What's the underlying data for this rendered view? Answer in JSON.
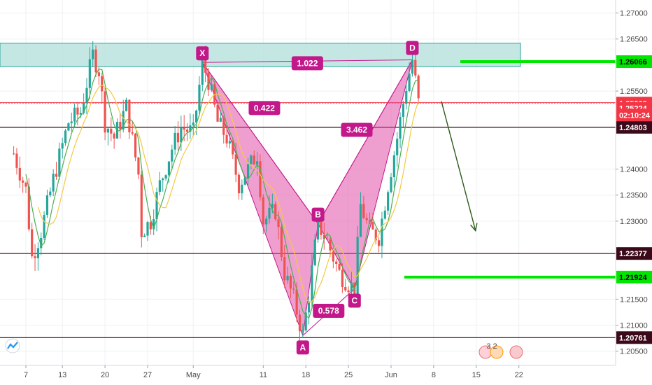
{
  "chart_data": {
    "type": "candlestick",
    "y_axis": {
      "min": 1.2005,
      "max": 1.2735,
      "ticks": [
        "1.27000",
        "1.26500",
        "1.25500",
        "1.24000",
        "1.23500",
        "1.23000",
        "1.21500",
        "1.21000",
        "1.20500"
      ],
      "tick_values": [
        1.27,
        1.265,
        1.255,
        1.24,
        1.235,
        1.23,
        1.215,
        1.21,
        1.205
      ]
    },
    "x_axis": {
      "ticks": [
        "7",
        "13",
        "20",
        "27",
        "May",
        "11",
        "18",
        "25",
        "Jun",
        "8",
        "15",
        "22"
      ],
      "tick_bars": [
        0,
        12,
        26,
        40,
        55,
        78,
        92,
        106,
        120,
        134,
        148,
        162
      ]
    },
    "resistance_zone": {
      "from": 1.2597,
      "to": 1.2642
    },
    "price_lines": [
      {
        "value": 1.26066,
        "label": "1.26066",
        "color": "#00e600",
        "kind": "target"
      },
      {
        "value": 1.25268,
        "label": "1.25268",
        "color": "#f23645",
        "kind": "current"
      },
      {
        "value": 1.25224,
        "label": "1.25224",
        "color": "#f23645",
        "kind": "bid"
      },
      {
        "value": 1.24803,
        "label": "1.24803",
        "color": "#3b0a1a",
        "kind": "level"
      },
      {
        "value": 1.22377,
        "label": "1.22377",
        "color": "#3b0a1a",
        "kind": "level"
      },
      {
        "value": 1.21924,
        "label": "1.21924",
        "color": "#00e600",
        "kind": "target"
      },
      {
        "value": 1.20761,
        "label": "1.20761",
        "color": "#3b0a1a",
        "kind": "level"
      }
    ],
    "countdown": "02:10:24",
    "harmonic_pattern": {
      "points": [
        {
          "label": "X",
          "bar": 58,
          "price": 1.2605
        },
        {
          "label": "A",
          "bar": 91,
          "price": 1.208
        },
        {
          "label": "B",
          "bar": 96,
          "price": 1.2295
        },
        {
          "label": "C",
          "bar": 108,
          "price": 1.217
        },
        {
          "label": "D",
          "bar": 127,
          "price": 1.261
        }
      ],
      "ratios": [
        {
          "label": "0.422",
          "between": "XB"
        },
        {
          "label": "0.578",
          "between": "AC"
        },
        {
          "label": "3.462",
          "between": "BD"
        },
        {
          "label": "1.022",
          "between": "XD"
        }
      ]
    },
    "projection": {
      "from_bar": 137,
      "from_price": 1.2525,
      "to_bar": 145,
      "to_price": 1.2295
    },
    "candles": {
      "first_bar": -4,
      "last_bar": 129,
      "waypoints": [
        [
          -4,
          1.243
        ],
        [
          0,
          1.236
        ],
        [
          2,
          1.223
        ],
        [
          5,
          1.228
        ],
        [
          9,
          1.238
        ],
        [
          14,
          1.249
        ],
        [
          18,
          1.251
        ],
        [
          22,
          1.262
        ],
        [
          24,
          1.259
        ],
        [
          26,
          1.249
        ],
        [
          29,
          1.246
        ],
        [
          33,
          1.252
        ],
        [
          37,
          1.239
        ],
        [
          38,
          1.228
        ],
        [
          41,
          1.23
        ],
        [
          44,
          1.237
        ],
        [
          48,
          1.244
        ],
        [
          51,
          1.248
        ],
        [
          55,
          1.247
        ],
        [
          58,
          1.2605
        ],
        [
          60,
          1.257
        ],
        [
          63,
          1.249
        ],
        [
          66,
          1.246
        ],
        [
          70,
          1.237
        ],
        [
          73,
          1.24
        ],
        [
          76,
          1.243
        ],
        [
          78,
          1.23
        ],
        [
          82,
          1.232
        ],
        [
          85,
          1.22
        ],
        [
          88,
          1.215
        ],
        [
          91,
          1.208
        ],
        [
          93,
          1.216
        ],
        [
          96,
          1.2295
        ],
        [
          99,
          1.226
        ],
        [
          103,
          1.22
        ],
        [
          106,
          1.218
        ],
        [
          108,
          1.217
        ],
        [
          110,
          1.233
        ],
        [
          113,
          1.228
        ],
        [
          116,
          1.227
        ],
        [
          119,
          1.237
        ],
        [
          122,
          1.246
        ],
        [
          125,
          1.256
        ],
        [
          127,
          1.261
        ],
        [
          129,
          1.2527
        ]
      ]
    }
  },
  "chrome": {
    "logo_icon": "tradingview-logo",
    "news_icons": "3 2"
  }
}
